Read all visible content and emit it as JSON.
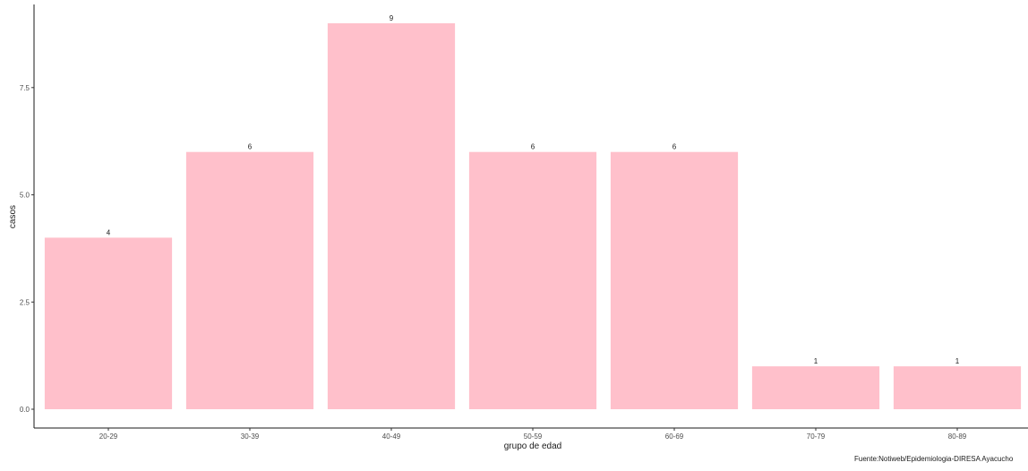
{
  "chart_data": {
    "type": "bar",
    "categories": [
      "20-29",
      "30-39",
      "40-49",
      "50-59",
      "60-69",
      "70-79",
      "80-89"
    ],
    "values": [
      4,
      6,
      9,
      6,
      6,
      1,
      1
    ],
    "data_labels": [
      "4",
      "6",
      "9",
      "6",
      "6",
      "1",
      "1"
    ],
    "xlabel": "grupo de edad",
    "ylabel": "casos",
    "ylim": [
      0,
      9.45
    ],
    "yticks": [
      0,
      2.5,
      5,
      7.5
    ],
    "ytick_labels": [
      "0.0",
      "2.5",
      "5.0",
      "7.5"
    ],
    "grid": false,
    "bar_color": "#ffc0cb",
    "caption": "Fuente:Notiweb/Epidemiologia-DIRESA Ayacucho"
  }
}
